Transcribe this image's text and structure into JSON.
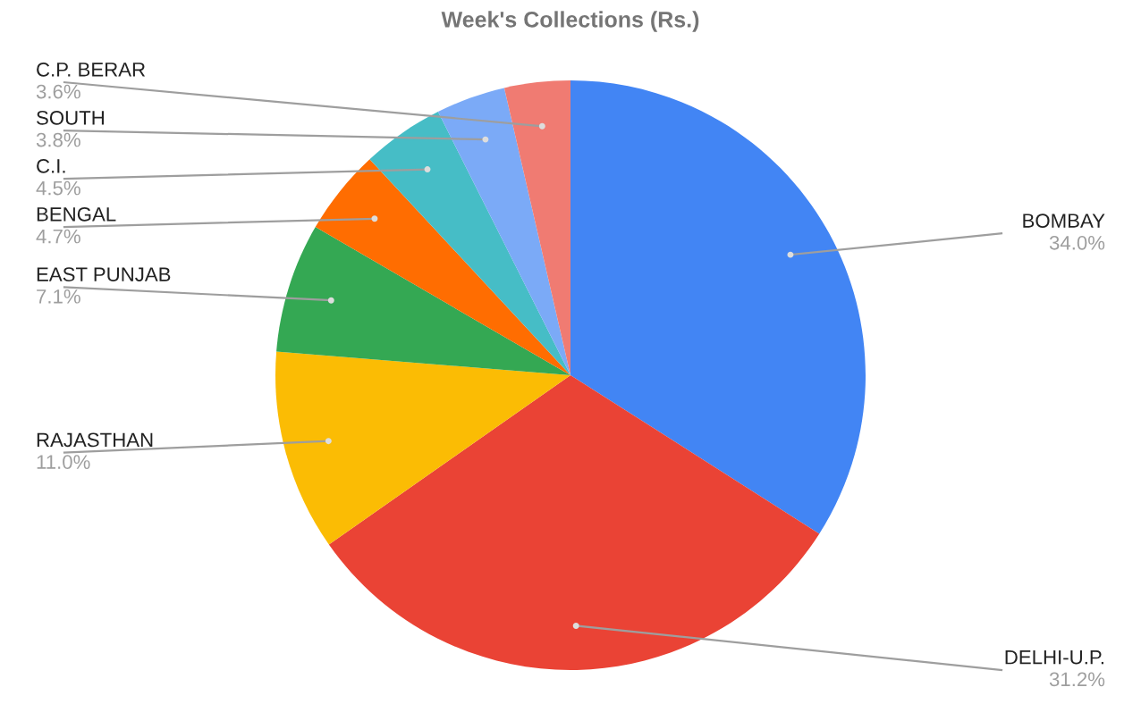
{
  "chart_data": {
    "type": "pie",
    "title": "Week's Collections (Rs.)",
    "categories": [
      "BOMBAY",
      "DELHI-U.P.",
      "RAJASTHAN",
      "EAST PUNJAB",
      "BENGAL",
      "C.I.",
      "SOUTH",
      "C.P. BERAR"
    ],
    "values": [
      34.0,
      31.2,
      11.0,
      7.1,
      4.7,
      4.5,
      3.8,
      3.6
    ],
    "colors": [
      "#4285f4",
      "#ea4335",
      "#fbbc04",
      "#34a853",
      "#ff6d01",
      "#46bdc6",
      "#7baaf7",
      "#f07b72"
    ],
    "value_labels": [
      "34.0%",
      "31.2%",
      "11.0%",
      "7.1%",
      "4.7%",
      "4.5%",
      "3.8%",
      "3.6%"
    ]
  }
}
